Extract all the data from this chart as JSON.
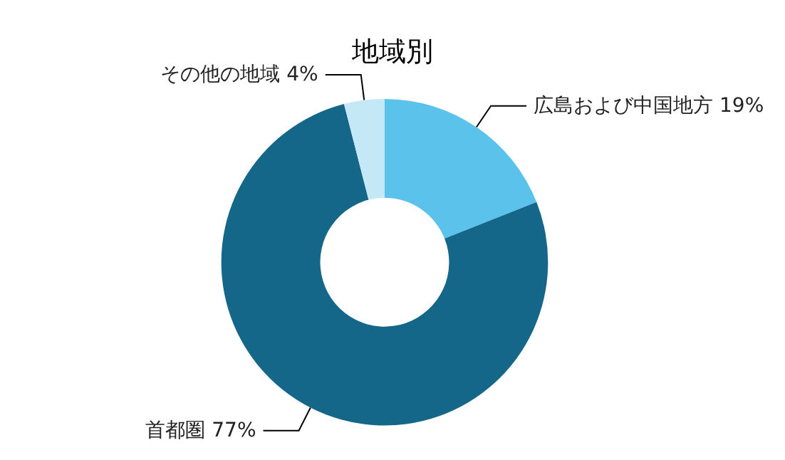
{
  "chart_data": {
    "type": "donut",
    "title": "地域別",
    "categories": [
      "広島および中国地方",
      "首都圏",
      "その他の地域"
    ],
    "values": [
      19,
      77,
      4
    ],
    "colors": [
      "#5bc2ec",
      "#156789",
      "#c5e8f7"
    ],
    "value_labels": [
      "19%",
      "77%",
      "4%"
    ],
    "legend": false
  }
}
